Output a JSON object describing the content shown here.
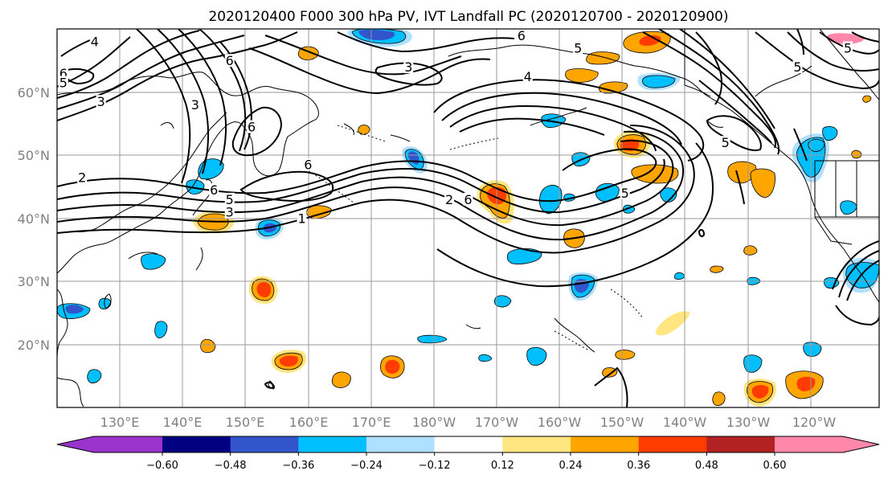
{
  "title": "2020120400 F000 300 hPa PV, IVT Landfall PC (2020120700 - 2020120900)",
  "map": {
    "projection": "equirectangular",
    "lon_range": [
      120,
      251
    ],
    "lat_range": [
      10,
      70
    ],
    "lat_ticks": [
      {
        "value": 20,
        "label": "20°N"
      },
      {
        "value": 30,
        "label": "30°N"
      },
      {
        "value": 40,
        "label": "40°N"
      },
      {
        "value": 50,
        "label": "50°N"
      },
      {
        "value": 60,
        "label": "60°N"
      }
    ],
    "lon_ticks": [
      {
        "value": 130,
        "label": "130°E"
      },
      {
        "value": 140,
        "label": "140°E"
      },
      {
        "value": 150,
        "label": "150°E"
      },
      {
        "value": 160,
        "label": "160°E"
      },
      {
        "value": 170,
        "label": "170°E"
      },
      {
        "value": 180,
        "label": "180°W"
      },
      {
        "value": 190,
        "label": "170°W"
      },
      {
        "value": 200,
        "label": "160°W"
      },
      {
        "value": 210,
        "label": "150°W"
      },
      {
        "value": 220,
        "label": "140°W"
      },
      {
        "value": 230,
        "label": "130°W"
      },
      {
        "value": 240,
        "label": "120°W"
      }
    ],
    "grid": true
  },
  "colorbar": {
    "orientation": "horizontal",
    "extend": "both",
    "boundaries": [
      -0.72,
      -0.6,
      -0.48,
      -0.36,
      -0.24,
      -0.12,
      0.12,
      0.24,
      0.36,
      0.48,
      0.6,
      0.72
    ],
    "colors": [
      "#9933cc",
      "#000080",
      "#3355cc",
      "#00bfff",
      "#b0e0ff",
      "#ffffff",
      "#ffe680",
      "#ffa500",
      "#ff3c00",
      "#b22222",
      "#ff88aa"
    ],
    "under_color": "#9933cc",
    "over_color": "#ff88aa",
    "tick_labels": [
      "−0.60",
      "−0.48",
      "−0.36",
      "−0.24",
      "−0.12",
      "0.12",
      "0.24",
      "0.36",
      "0.48",
      "0.60"
    ],
    "tick_values": [
      -0.6,
      -0.48,
      -0.36,
      -0.24,
      -0.12,
      0.12,
      0.24,
      0.36,
      0.48,
      0.6
    ]
  },
  "contour_labels": [
    {
      "text": "4",
      "lon": 126,
      "lat": 67.5
    },
    {
      "text": "6",
      "lon": 121,
      "lat": 62.5
    },
    {
      "text": "5",
      "lon": 121,
      "lat": 61
    },
    {
      "text": "3",
      "lon": 127,
      "lat": 58
    },
    {
      "text": "2",
      "lon": 124,
      "lat": 46
    },
    {
      "text": "3",
      "lon": 142,
      "lat": 57.5
    },
    {
      "text": "6",
      "lon": 147.5,
      "lat": 64.5
    },
    {
      "text": "6",
      "lon": 151,
      "lat": 54
    },
    {
      "text": "6",
      "lon": 160,
      "lat": 48
    },
    {
      "text": "6",
      "lon": 145,
      "lat": 44
    },
    {
      "text": "5",
      "lon": 147.5,
      "lat": 42.5
    },
    {
      "text": "3",
      "lon": 147.5,
      "lat": 40.5
    },
    {
      "text": "1",
      "lon": 159,
      "lat": 39.5
    },
    {
      "text": "6",
      "lon": 194,
      "lat": 68.5
    },
    {
      "text": "5",
      "lon": 203,
      "lat": 66.5
    },
    {
      "text": "4",
      "lon": 195,
      "lat": 62
    },
    {
      "text": "3",
      "lon": 176,
      "lat": 63.5
    },
    {
      "text": "2",
      "lon": 182.5,
      "lat": 42.5
    },
    {
      "text": "6",
      "lon": 185.5,
      "lat": 42.5
    },
    {
      "text": "5",
      "lon": 210.5,
      "lat": 43.5
    },
    {
      "text": "5",
      "lon": 226.5,
      "lat": 51.5
    },
    {
      "text": "5",
      "lon": 238,
      "lat": 63.5
    },
    {
      "text": "5",
      "lon": 246,
      "lat": 66.5
    }
  ]
}
